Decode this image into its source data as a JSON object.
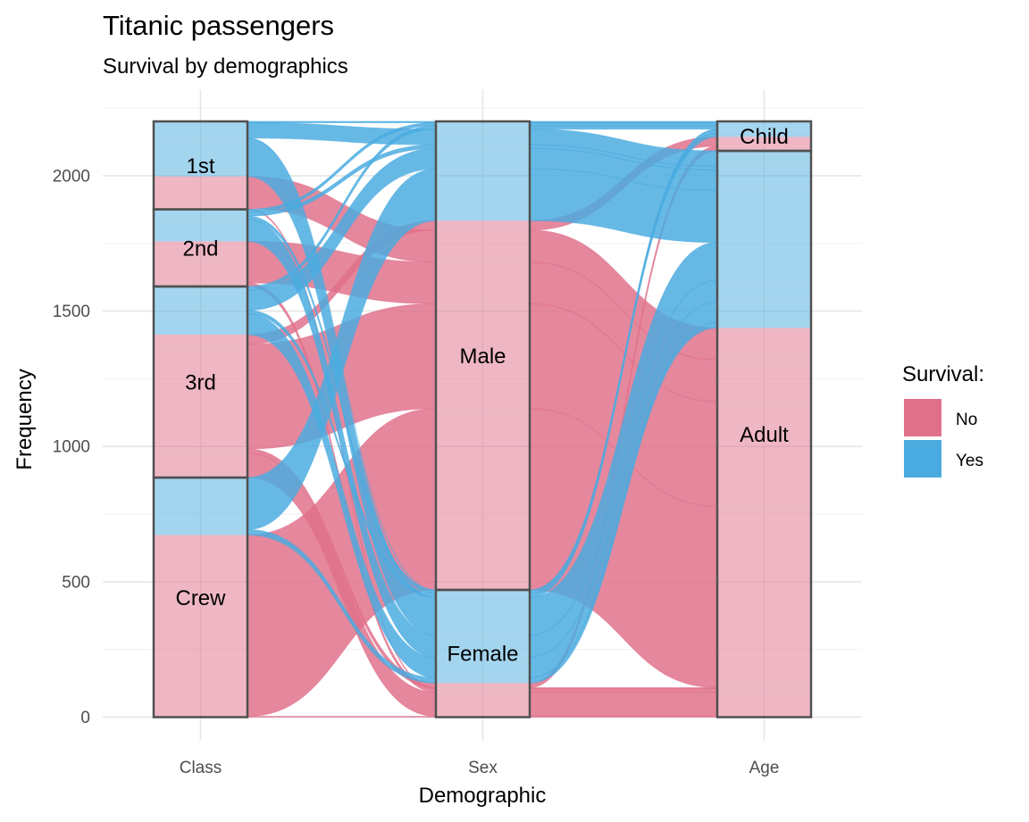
{
  "chart_data": {
    "type": "alluvial",
    "title": "Titanic passengers",
    "subtitle": "Survival by demographics",
    "xlabel": "Demographic",
    "ylabel": "Frequency",
    "axes": [
      "Class",
      "Sex",
      "Age"
    ],
    "ylim": [
      0,
      2201
    ],
    "yticks": [
      0,
      500,
      1000,
      1500,
      2000
    ],
    "grid": true,
    "legend": {
      "title": "Survival:",
      "placement": "right",
      "entries": [
        {
          "label": "No",
          "color": "#E0708A"
        },
        {
          "label": "Yes",
          "color": "#4AABE0"
        }
      ]
    },
    "strata": {
      "Class": [
        "Crew",
        "3rd",
        "2nd",
        "1st"
      ],
      "Sex": [
        "Female",
        "Male"
      ],
      "Age": [
        "Adult",
        "Child"
      ]
    },
    "flows": [
      {
        "Class": "1st",
        "Sex": "Male",
        "Age": "Child",
        "Survived": "No",
        "Freq": 0
      },
      {
        "Class": "2nd",
        "Sex": "Male",
        "Age": "Child",
        "Survived": "No",
        "Freq": 0
      },
      {
        "Class": "3rd",
        "Sex": "Male",
        "Age": "Child",
        "Survived": "No",
        "Freq": 35
      },
      {
        "Class": "Crew",
        "Sex": "Male",
        "Age": "Child",
        "Survived": "No",
        "Freq": 0
      },
      {
        "Class": "1st",
        "Sex": "Female",
        "Age": "Child",
        "Survived": "No",
        "Freq": 0
      },
      {
        "Class": "2nd",
        "Sex": "Female",
        "Age": "Child",
        "Survived": "No",
        "Freq": 0
      },
      {
        "Class": "3rd",
        "Sex": "Female",
        "Age": "Child",
        "Survived": "No",
        "Freq": 17
      },
      {
        "Class": "Crew",
        "Sex": "Female",
        "Age": "Child",
        "Survived": "No",
        "Freq": 0
      },
      {
        "Class": "1st",
        "Sex": "Male",
        "Age": "Adult",
        "Survived": "No",
        "Freq": 118
      },
      {
        "Class": "2nd",
        "Sex": "Male",
        "Age": "Adult",
        "Survived": "No",
        "Freq": 154
      },
      {
        "Class": "3rd",
        "Sex": "Male",
        "Age": "Adult",
        "Survived": "No",
        "Freq": 387
      },
      {
        "Class": "Crew",
        "Sex": "Male",
        "Age": "Adult",
        "Survived": "No",
        "Freq": 670
      },
      {
        "Class": "1st",
        "Sex": "Female",
        "Age": "Adult",
        "Survived": "No",
        "Freq": 4
      },
      {
        "Class": "2nd",
        "Sex": "Female",
        "Age": "Adult",
        "Survived": "No",
        "Freq": 13
      },
      {
        "Class": "3rd",
        "Sex": "Female",
        "Age": "Adult",
        "Survived": "No",
        "Freq": 89
      },
      {
        "Class": "Crew",
        "Sex": "Female",
        "Age": "Adult",
        "Survived": "No",
        "Freq": 3
      },
      {
        "Class": "1st",
        "Sex": "Male",
        "Age": "Child",
        "Survived": "Yes",
        "Freq": 5
      },
      {
        "Class": "2nd",
        "Sex": "Male",
        "Age": "Child",
        "Survived": "Yes",
        "Freq": 11
      },
      {
        "Class": "3rd",
        "Sex": "Male",
        "Age": "Child",
        "Survived": "Yes",
        "Freq": 13
      },
      {
        "Class": "Crew",
        "Sex": "Male",
        "Age": "Child",
        "Survived": "Yes",
        "Freq": 0
      },
      {
        "Class": "1st",
        "Sex": "Female",
        "Age": "Child",
        "Survived": "Yes",
        "Freq": 1
      },
      {
        "Class": "2nd",
        "Sex": "Female",
        "Age": "Child",
        "Survived": "Yes",
        "Freq": 13
      },
      {
        "Class": "3rd",
        "Sex": "Female",
        "Age": "Child",
        "Survived": "Yes",
        "Freq": 14
      },
      {
        "Class": "Crew",
        "Sex": "Female",
        "Age": "Child",
        "Survived": "Yes",
        "Freq": 0
      },
      {
        "Class": "1st",
        "Sex": "Male",
        "Age": "Adult",
        "Survived": "Yes",
        "Freq": 57
      },
      {
        "Class": "2nd",
        "Sex": "Male",
        "Age": "Adult",
        "Survived": "Yes",
        "Freq": 14
      },
      {
        "Class": "3rd",
        "Sex": "Male",
        "Age": "Adult",
        "Survived": "Yes",
        "Freq": 75
      },
      {
        "Class": "Crew",
        "Sex": "Male",
        "Age": "Adult",
        "Survived": "Yes",
        "Freq": 192
      },
      {
        "Class": "1st",
        "Sex": "Female",
        "Age": "Adult",
        "Survived": "Yes",
        "Freq": 140
      },
      {
        "Class": "2nd",
        "Sex": "Female",
        "Age": "Adult",
        "Survived": "Yes",
        "Freq": 80
      },
      {
        "Class": "3rd",
        "Sex": "Female",
        "Age": "Adult",
        "Survived": "Yes",
        "Freq": 76
      },
      {
        "Class": "Crew",
        "Sex": "Female",
        "Age": "Adult",
        "Survived": "Yes",
        "Freq": 20
      }
    ],
    "colors": {
      "No": "#E0708A",
      "Yes": "#4AABE0",
      "stratum_border": "#505050"
    }
  }
}
